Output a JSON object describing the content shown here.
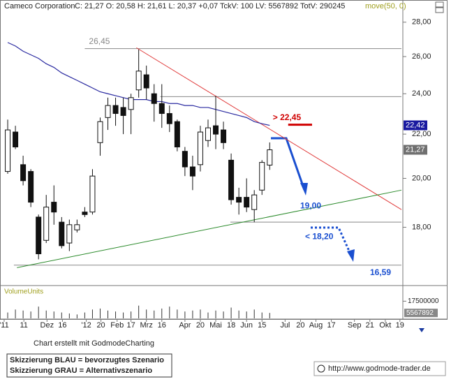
{
  "header": {
    "title": "Cameco Corporation",
    "quote": "C: 21,27 O: 20,58 H: 21,61 L: 20,37 +0,07 TckV: 100 LV: 5567892 TotV: 290245",
    "indicator": "move(50, 0)"
  },
  "chart_data": {
    "type": "candlestick",
    "log_scale": true,
    "grid": false,
    "xlim": [
      -1,
      51.1
    ],
    "ylim": [
      15.9,
      28.5
    ],
    "yticks": [
      {
        "value": 18,
        "label": "18,00"
      },
      {
        "value": 20,
        "label": "20,00"
      },
      {
        "value": 22,
        "label": "22,00"
      },
      {
        "value": 24,
        "label": "24,00"
      },
      {
        "value": 26,
        "label": "26,00"
      },
      {
        "value": 28,
        "label": "28,00"
      }
    ],
    "xticks": [
      {
        "value": -0.46,
        "label": "'11"
      },
      {
        "value": 2.1,
        "label": "11"
      },
      {
        "value": 5.1,
        "label": "Dez"
      },
      {
        "value": 7.1,
        "label": "16"
      },
      {
        "value": 10.2,
        "label": "'12"
      },
      {
        "value": 12.1,
        "label": "20"
      },
      {
        "value": 14.2,
        "label": "Feb"
      },
      {
        "value": 16,
        "label": "17"
      },
      {
        "value": 18,
        "label": "Mrz"
      },
      {
        "value": 20,
        "label": "16"
      },
      {
        "value": 23,
        "label": "Apr"
      },
      {
        "value": 25,
        "label": "20"
      },
      {
        "value": 27,
        "label": "Mai"
      },
      {
        "value": 29,
        "label": "18"
      },
      {
        "value": 31,
        "label": "Jun"
      },
      {
        "value": 33,
        "label": "15"
      },
      {
        "value": 36,
        "label": "Jul"
      },
      {
        "value": 38,
        "label": "20"
      },
      {
        "value": 40,
        "label": "Aug"
      },
      {
        "value": 42,
        "label": "17"
      },
      {
        "value": 45,
        "label": "Sep"
      },
      {
        "value": 47,
        "label": "21"
      },
      {
        "value": 49,
        "label": "Okt"
      },
      {
        "value": 50.9,
        "label": "19"
      }
    ],
    "open": [
      20.3,
      22.1,
      20.6,
      20.3,
      18.4,
      17.5,
      19.0,
      18.2,
      17.4,
      17.9,
      18.6,
      18.6,
      21.6,
      22.8,
      23.4,
      23.3,
      23.2,
      24.2,
      25.0,
      24.0,
      23.5,
      23.0,
      22.6,
      21.2,
      20.5,
      20.6,
      21.7,
      22.4,
      22.2,
      20.8,
      19.2,
      19.2,
      18.7,
      19.5,
      20.58
    ],
    "high": [
      22.7,
      22.4,
      21.0,
      20.4,
      18.5,
      19.3,
      19.7,
      18.4,
      18.3,
      18.3,
      18.8,
      20.4,
      22.8,
      23.8,
      23.8,
      23.8,
      24.0,
      26.4,
      25.5,
      24.5,
      24.5,
      23.4,
      22.7,
      21.4,
      21.0,
      22.4,
      22.7,
      23.9,
      22.6,
      21.1,
      19.6,
      20.0,
      19.5,
      20.8,
      21.61
    ],
    "low": [
      20.2,
      21.3,
      19.7,
      18.8,
      16.8,
      17.4,
      18.1,
      17.2,
      17.1,
      17.8,
      18.4,
      18.5,
      21.0,
      22.2,
      22.4,
      22.0,
      22.0,
      23.8,
      23.7,
      22.6,
      22.3,
      22.1,
      21.2,
      20.1,
      19.5,
      20.3,
      21.4,
      21.3,
      21.3,
      18.9,
      18.5,
      18.6,
      18.2,
      19.3,
      20.37
    ],
    "close": [
      22.2,
      21.4,
      19.9,
      19.0,
      17.0,
      18.8,
      18.6,
      17.3,
      18.1,
      18.1,
      18.5,
      20.1,
      22.6,
      23.4,
      23.0,
      22.9,
      23.8,
      25.2,
      24.3,
      23.5,
      23.0,
      22.5,
      21.4,
      20.5,
      20.1,
      22.1,
      22.3,
      22.0,
      21.6,
      19.1,
      19.0,
      18.8,
      19.3,
      20.7,
      21.27
    ],
    "moving_average": {
      "color": "#2a2aa0",
      "values": [
        26.8,
        26.6,
        26.3,
        26.1,
        25.9,
        25.6,
        25.4,
        25.1,
        24.9,
        24.7,
        24.5,
        24.3,
        24.1,
        24.0,
        23.9,
        23.8,
        23.7,
        23.7,
        23.7,
        23.6,
        23.6,
        23.5,
        23.5,
        23.4,
        23.4,
        23.3,
        23.3,
        23.2,
        23.1,
        23.0,
        22.9,
        22.8,
        22.6,
        22.5,
        22.42
      ]
    },
    "trendlines": [
      {
        "color": "#e03a3a",
        "x": [
          16.7,
          51.1
        ],
        "y": [
          26.5,
          18.7
        ]
      },
      {
        "color": "#2a8a2a",
        "x": [
          1.2,
          51.1
        ],
        "y": [
          16.5,
          19.5
        ]
      }
    ],
    "levels": [
      {
        "value": 26.45,
        "label": "26,45",
        "x": [
          10,
          51.1
        ],
        "color": "#888888"
      },
      {
        "value": 23.85,
        "x": [
          19.8,
          51.1
        ],
        "color": "#888888"
      },
      {
        "value": 18.2,
        "x": [
          28.9,
          51.1
        ],
        "color": "#888888"
      },
      {
        "value": 16.59,
        "x": [
          0.8,
          51.1
        ],
        "color": "#888888"
      },
      {
        "value": 22.45,
        "label": "> 22,45",
        "x": [
          36.4,
          39.5
        ],
        "color": "#d00000"
      }
    ],
    "annotations": [
      {
        "value": 19.0,
        "label": "19,00",
        "color": "#1a4fd0"
      },
      {
        "value": 18.2,
        "label": "< 18,20",
        "color": "#1a4fd0"
      },
      {
        "value": 16.59,
        "label": "16,59",
        "color": "#1a4fd0"
      }
    ],
    "price_labels": [
      {
        "value": 22.42,
        "label": "22,42",
        "color": "#1a1aa0"
      },
      {
        "value": 21.27,
        "label": "21,27",
        "color": "#707070"
      }
    ],
    "volume": {
      "label": "VolumeUnits",
      "ylim": [
        0,
        31300000
      ],
      "yticks": [
        17500000
      ],
      "last": 5567892,
      "values": [
        6000000,
        9000000,
        8000000,
        7000000,
        12000000,
        8000000,
        7000000,
        6000000,
        5000000,
        4000000,
        6000000,
        9000000,
        10000000,
        8000000,
        7000000,
        6000000,
        7000000,
        13000000,
        9000000,
        8000000,
        10000000,
        12000000,
        9000000,
        7000000,
        8000000,
        9000000,
        6000000,
        8000000,
        7000000,
        11000000,
        8000000,
        7000000,
        9000000,
        6000000,
        5567892
      ]
    }
  },
  "footer": {
    "credit": "Chart erstellt mit GodmodeCharting",
    "legend": [
      "Skizzierung BLAU = bevorzugtes Szenario",
      "Skizzierung GRAU = Alternativszenario"
    ],
    "url": "http://www.godmode-trader.de"
  }
}
